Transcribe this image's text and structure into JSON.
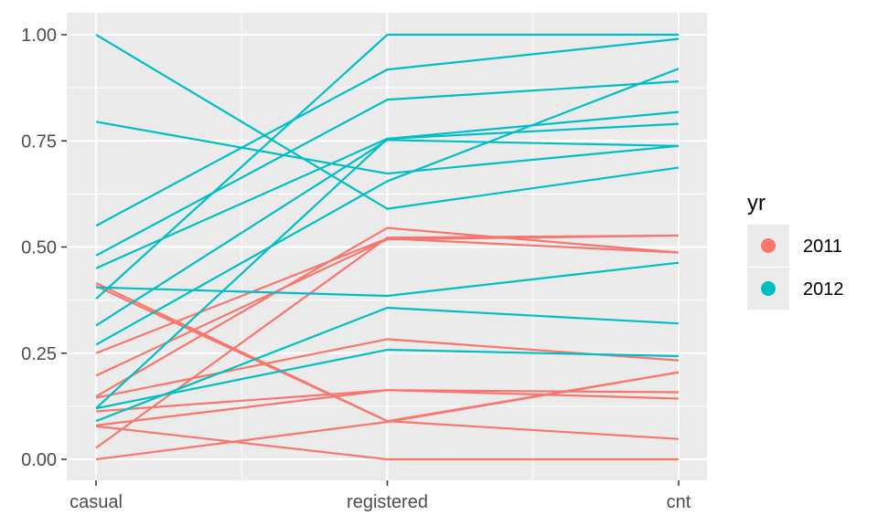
{
  "chart_data": {
    "type": "line",
    "title": "",
    "xlabel": "",
    "ylabel": "",
    "categories": [
      "casual",
      "registered",
      "cnt"
    ],
    "ylim": [
      -0.05,
      1.05
    ],
    "y_ticks": [
      0,
      0.25,
      0.5,
      0.75,
      1
    ],
    "y_tick_labels": [
      "0.00",
      "0.25",
      "0.50",
      "0.75",
      "1.00"
    ],
    "grid": true,
    "legend": {
      "title": "yr",
      "position": "right",
      "entries": [
        {
          "label": "2011",
          "color": "#F8766D"
        },
        {
          "label": "2012",
          "color": "#00BFC4"
        }
      ]
    },
    "series": [
      {
        "group": "2011",
        "values": [
          0.415,
          0.09,
          0.048
        ]
      },
      {
        "group": "2011",
        "values": [
          0.25,
          0.52,
          0.487
        ]
      },
      {
        "group": "2011",
        "values": [
          0.197,
          0.518,
          0.527
        ]
      },
      {
        "group": "2011",
        "values": [
          0.148,
          0.545,
          0.487
        ]
      },
      {
        "group": "2011",
        "values": [
          0.145,
          0.283,
          0.233
        ]
      },
      {
        "group": "2011",
        "values": [
          0.113,
          0.163,
          0.143
        ]
      },
      {
        "group": "2011",
        "values": [
          0.08,
          0.163,
          0.158
        ]
      },
      {
        "group": "2011",
        "values": [
          0.078,
          0.0,
          0.0
        ]
      },
      {
        "group": "2011",
        "values": [
          0.027,
          0.522,
          0.527
        ]
      },
      {
        "group": "2011",
        "values": [
          0.0,
          0.088,
          0.205
        ]
      },
      {
        "group": "2011",
        "values": [
          0.408,
          0.09,
          0.205
        ]
      },
      {
        "group": "2012",
        "values": [
          1.0,
          0.59,
          0.687
        ]
      },
      {
        "group": "2012",
        "values": [
          0.795,
          0.673,
          0.738
        ]
      },
      {
        "group": "2012",
        "values": [
          0.55,
          0.918,
          0.99
        ]
      },
      {
        "group": "2012",
        "values": [
          0.48,
          0.847,
          0.89
        ]
      },
      {
        "group": "2012",
        "values": [
          0.45,
          0.755,
          0.818
        ]
      },
      {
        "group": "2012",
        "values": [
          0.405,
          0.385,
          0.463
        ]
      },
      {
        "group": "2012",
        "values": [
          0.378,
          1.0,
          1.0
        ]
      },
      {
        "group": "2012",
        "values": [
          0.315,
          0.752,
          0.738
        ]
      },
      {
        "group": "2012",
        "values": [
          0.27,
          0.655,
          0.92
        ]
      },
      {
        "group": "2012",
        "values": [
          0.12,
          0.258,
          0.243
        ]
      },
      {
        "group": "2012",
        "values": [
          0.09,
          0.357,
          0.32
        ]
      },
      {
        "group": "2012",
        "values": [
          0.12,
          0.755,
          0.79
        ]
      }
    ]
  }
}
